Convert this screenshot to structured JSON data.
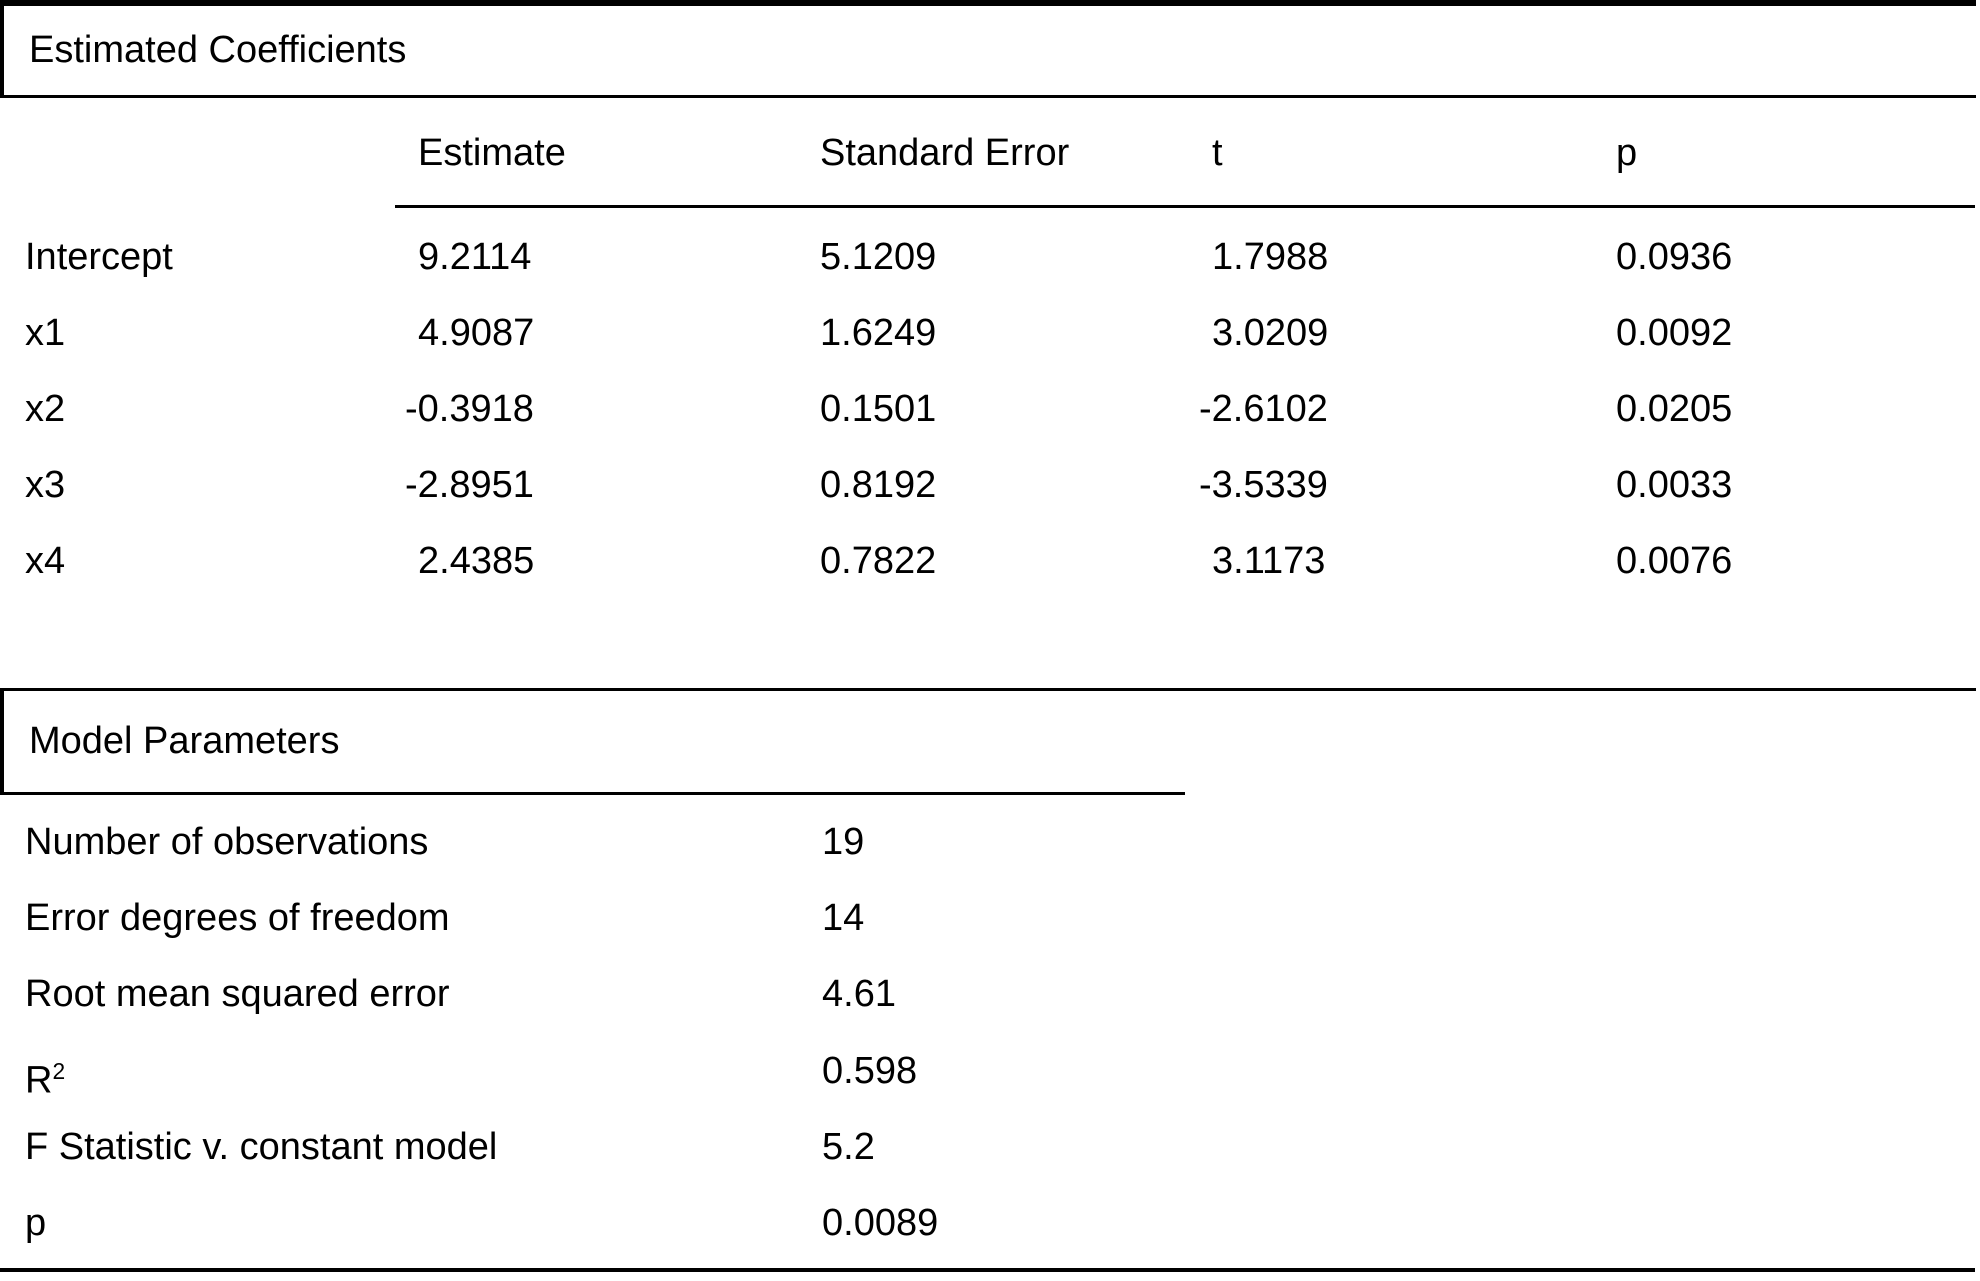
{
  "estimated_coefficients": {
    "title": "Estimated Coefficients",
    "columns": [
      "Estimate",
      "Standard Error",
      "t",
      "p"
    ],
    "rows": [
      {
        "name": "Intercept",
        "estimate": "9.2114",
        "se": "5.1209",
        "t": "1.7988",
        "p": "0.0936"
      },
      {
        "name": "x1",
        "estimate": "4.9087",
        "se": "1.6249",
        "t": "3.0209",
        "p": "0.0092"
      },
      {
        "name": "x2",
        "estimate": "-0.3918",
        "se": "0.1501",
        "t": "-2.6102",
        "p": "0.0205"
      },
      {
        "name": "x3",
        "estimate": "-2.8951",
        "se": "0.8192",
        "t": "-3.5339",
        "p": "0.0033"
      },
      {
        "name": "x4",
        "estimate": "2.4385",
        "se": "0.7822",
        "t": "3.1173",
        "p": "0.0076"
      }
    ]
  },
  "model_parameters": {
    "title": "Model Parameters",
    "rows": [
      {
        "label": "Number of observations",
        "value": "19"
      },
      {
        "label": "Error degrees of freedom",
        "value": "14"
      },
      {
        "label": "Root mean squared error",
        "value": "4.61"
      },
      {
        "label": "R",
        "sup": "2",
        "value": "0.598"
      },
      {
        "label": "F Statistic v. constant model",
        "value": "5.2"
      },
      {
        "label": "p",
        "value": "0.0089"
      }
    ]
  },
  "colors": {
    "text": "#000000",
    "rule": "#000000",
    "background": "#ffffff"
  }
}
